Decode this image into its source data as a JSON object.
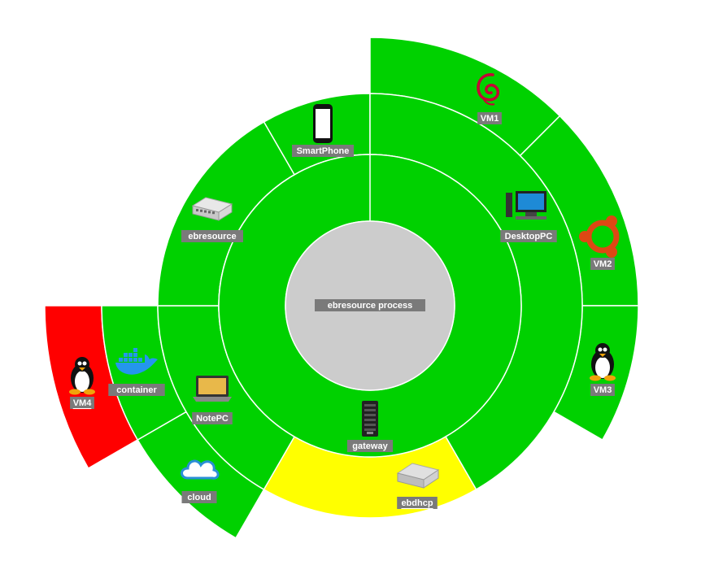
{
  "colors": {
    "ok": "#00d100",
    "warning": "#ffff00",
    "critical": "#ff0000",
    "center": "#cccccc",
    "label_bg": "#7a7a7a"
  },
  "center": {
    "label": "ebresource process"
  },
  "nodes": [
    {
      "id": "gateway",
      "label": "gateway",
      "icon": "server-tower-icon",
      "status": "ok",
      "underline": false
    },
    {
      "id": "smartphone",
      "label": "SmartPhone",
      "icon": "smartphone-icon",
      "status": "ok",
      "underline": false
    },
    {
      "id": "desktoppc",
      "label": "DesktopPC",
      "icon": "desktop-pc-icon",
      "status": "ok",
      "underline": false
    },
    {
      "id": "vm1",
      "label": "VM1",
      "icon": "debian-icon",
      "status": "ok",
      "underline": false
    },
    {
      "id": "vm2",
      "label": "VM2",
      "icon": "ubuntu-icon",
      "status": "ok",
      "underline": false
    },
    {
      "id": "vm3",
      "label": "VM3",
      "icon": "linux-tux-icon",
      "status": "ok",
      "underline": false
    },
    {
      "id": "ebdhcp",
      "label": "ebdhcp",
      "icon": "appliance-icon",
      "status": "warning",
      "underline": true
    },
    {
      "id": "notepc",
      "label": "NotePC",
      "icon": "laptop-icon",
      "status": "ok",
      "underline": false
    },
    {
      "id": "cloud",
      "label": "cloud",
      "icon": "cloud-icon",
      "status": "ok",
      "underline": false
    },
    {
      "id": "container",
      "label": "container",
      "icon": "docker-icon",
      "status": "ok",
      "underline": false
    },
    {
      "id": "vm4",
      "label": "VM4",
      "icon": "linux-tux-icon",
      "status": "critical",
      "underline": true
    },
    {
      "id": "ebresource",
      "label": "ebresource",
      "icon": "network-switch-icon",
      "status": "ok",
      "underline": false
    }
  ]
}
